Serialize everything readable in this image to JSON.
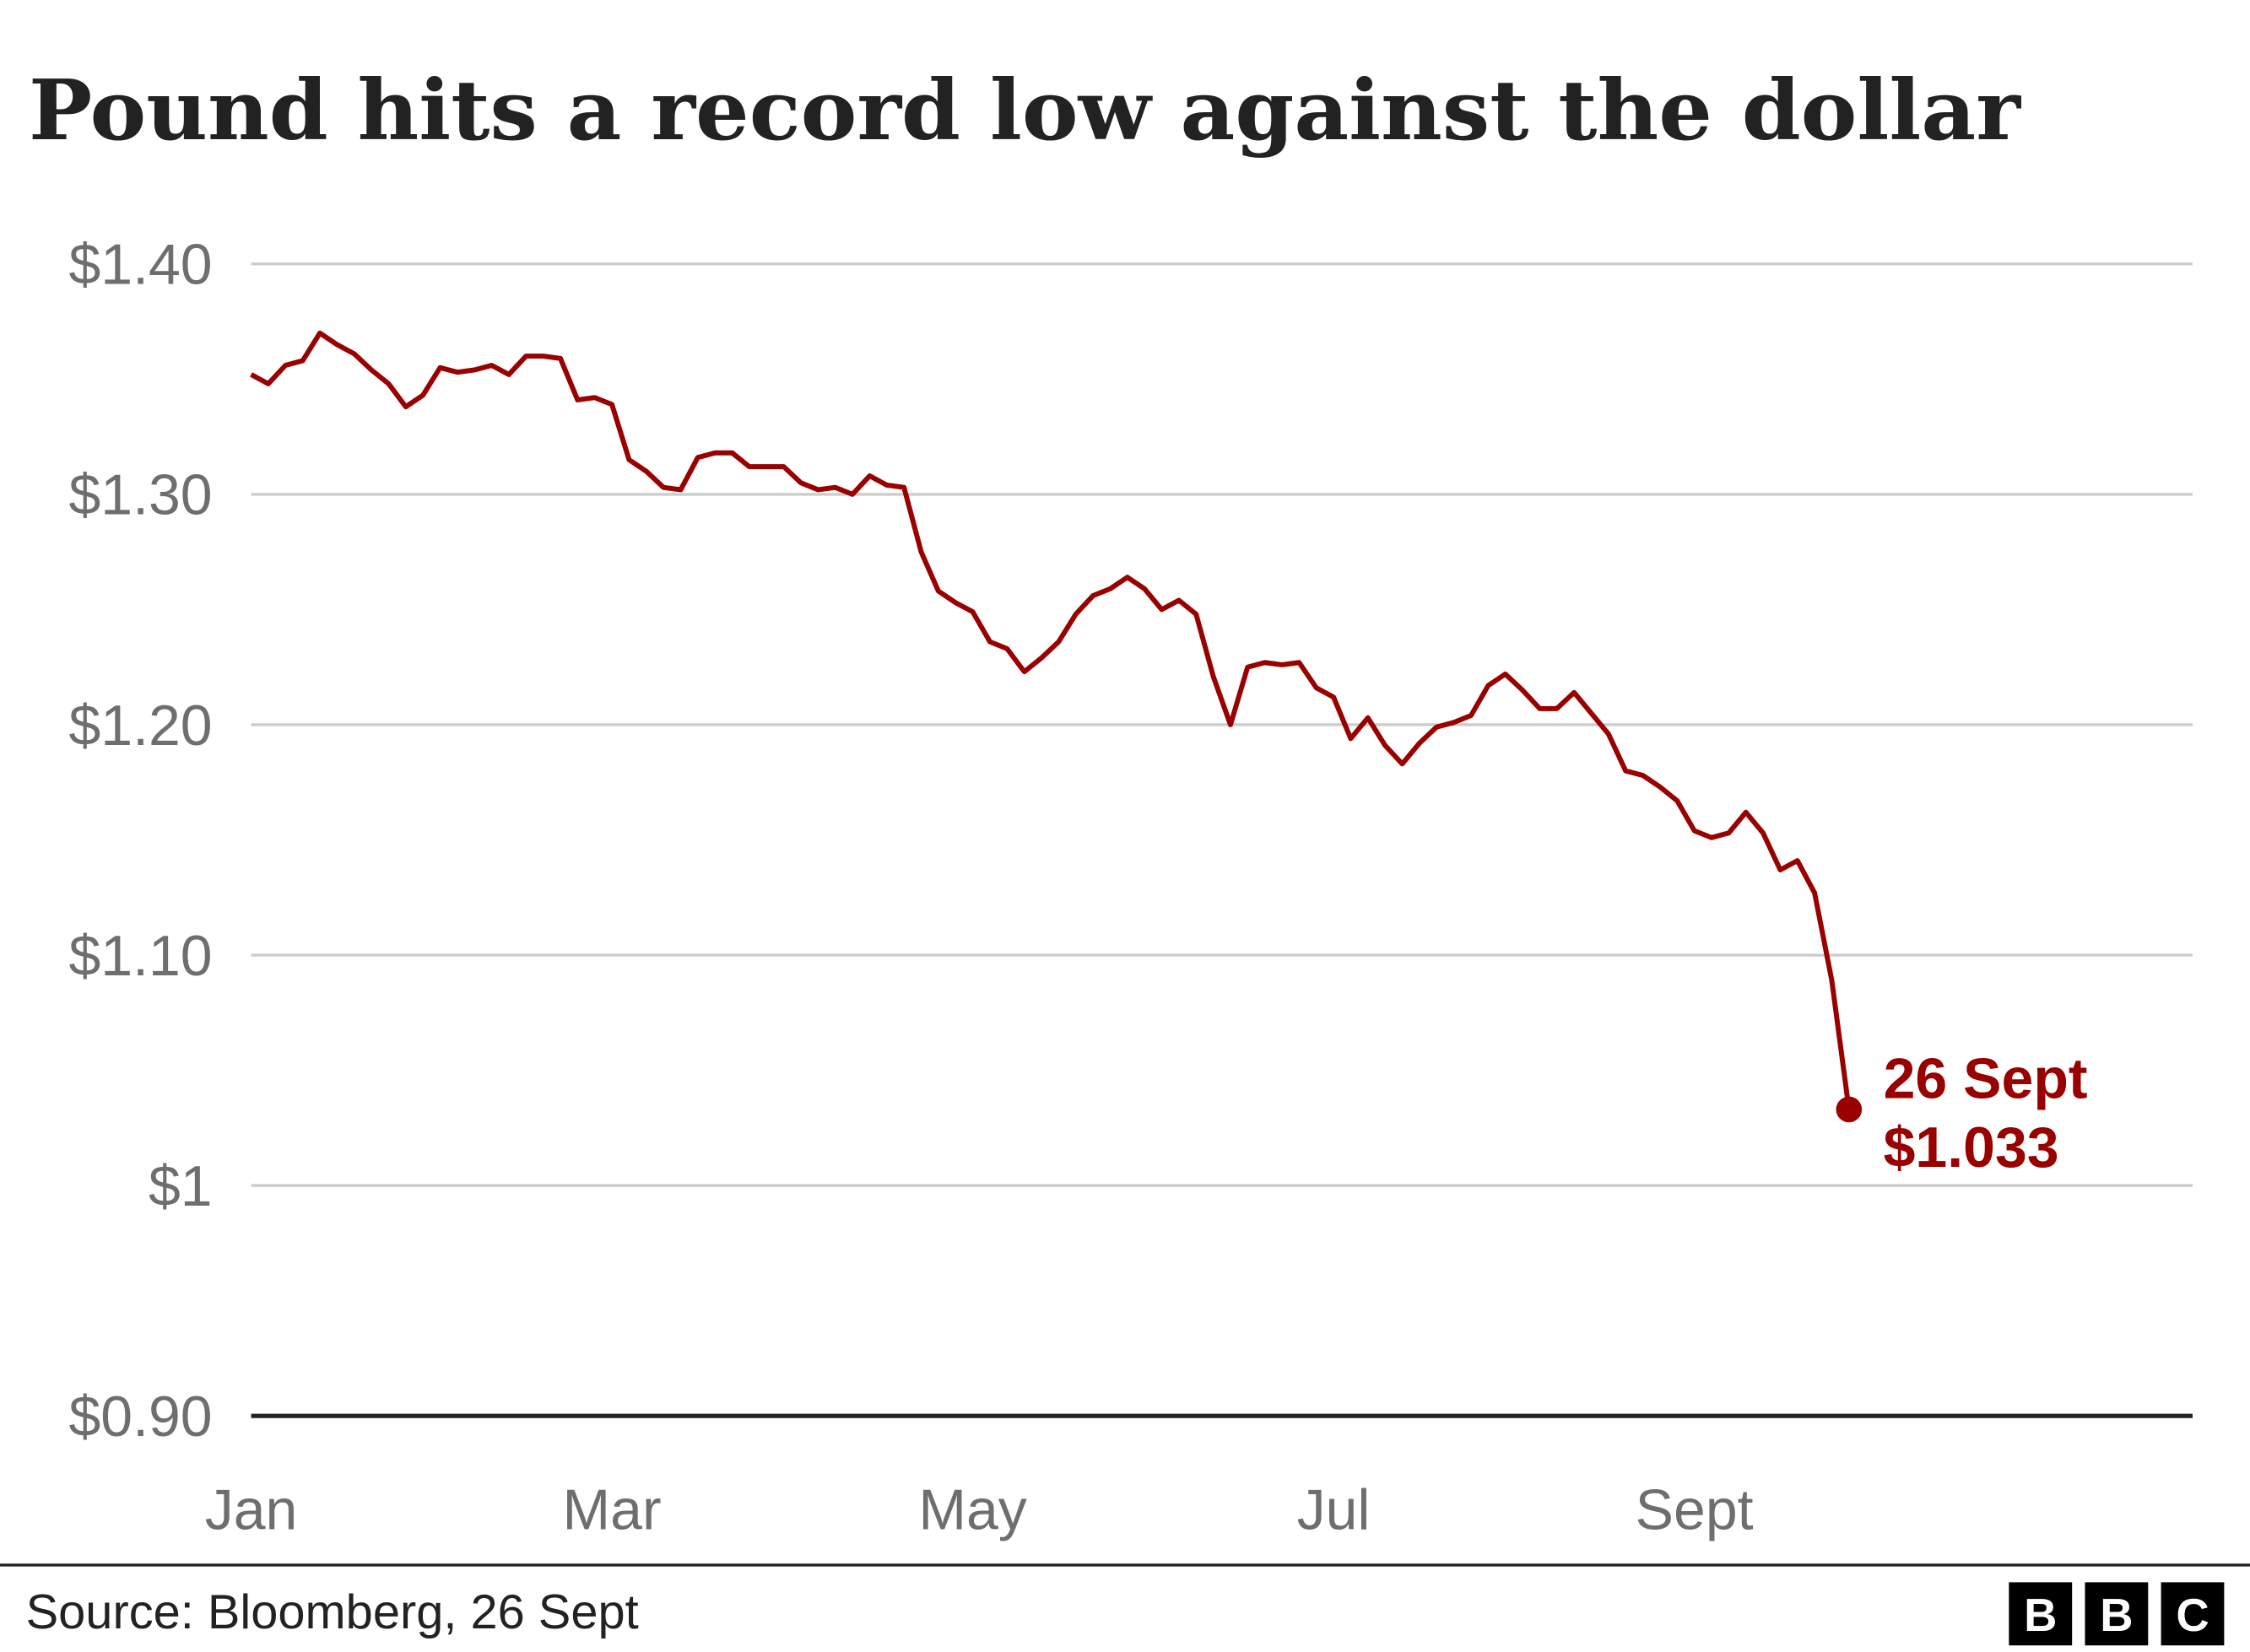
{
  "chart_data": {
    "type": "line",
    "title": "Pound hits a record low against the dollar",
    "categories": [
      "Jan",
      null,
      null,
      null,
      null,
      null,
      null,
      null,
      null,
      null,
      null,
      null,
      null,
      null,
      null,
      null,
      null,
      null,
      null,
      null,
      null,
      "Mar",
      null,
      null,
      null,
      null,
      null,
      null,
      null,
      null,
      null,
      null,
      null,
      null,
      null,
      null,
      null,
      null,
      null,
      null,
      null,
      null,
      "May",
      null,
      null,
      null,
      null,
      null,
      null,
      null,
      null,
      null,
      null,
      null,
      null,
      null,
      null,
      null,
      null,
      null,
      null,
      null,
      null,
      "Jul",
      null,
      null,
      null,
      null,
      null,
      null,
      null,
      null,
      null,
      null,
      null,
      null,
      null,
      null,
      null,
      null,
      null,
      null,
      null,
      null,
      "Sept",
      null,
      null,
      null,
      null,
      null,
      null,
      null,
      null,
      null
    ],
    "values": [
      1.352,
      1.348,
      1.356,
      1.358,
      1.37,
      1.365,
      1.361,
      1.354,
      1.348,
      1.338,
      1.343,
      1.355,
      1.353,
      1.354,
      1.356,
      1.352,
      1.36,
      1.36,
      1.359,
      1.341,
      1.342,
      1.339,
      1.315,
      1.31,
      1.303,
      1.302,
      1.316,
      1.318,
      1.318,
      1.312,
      1.312,
      1.312,
      1.305,
      1.302,
      1.303,
      1.3,
      1.308,
      1.304,
      1.303,
      1.275,
      1.258,
      1.253,
      1.249,
      1.236,
      1.233,
      1.223,
      1.229,
      1.236,
      1.248,
      1.256,
      1.259,
      1.264,
      1.259,
      1.25,
      1.254,
      1.248,
      1.221,
      1.2,
      1.225,
      1.227,
      1.226,
      1.227,
      1.216,
      1.212,
      1.194,
      1.203,
      1.191,
      1.183,
      1.192,
      1.199,
      1.201,
      1.204,
      1.217,
      1.222,
      1.215,
      1.207,
      1.207,
      1.214,
      1.205,
      1.196,
      1.18,
      1.178,
      1.173,
      1.167,
      1.154,
      1.151,
      1.153,
      1.162,
      1.153,
      1.137,
      1.141,
      1.127,
      1.089,
      1.033
    ],
    "value_labels": [
      null,
      null,
      null,
      null,
      null,
      null,
      null,
      null,
      null,
      null,
      null,
      null,
      null,
      null,
      null,
      null,
      null,
      null,
      null,
      null,
      null,
      null,
      null,
      null,
      null,
      null,
      null,
      null,
      null,
      null,
      null,
      null,
      null,
      null,
      null,
      null,
      null,
      null,
      null,
      null,
      null,
      null,
      null,
      null,
      null,
      null,
      null,
      null,
      null,
      null,
      null,
      null,
      null,
      null,
      null,
      null,
      null,
      null,
      null,
      null,
      null,
      null,
      null,
      null,
      null,
      null,
      null,
      null,
      null,
      null,
      null,
      null,
      null,
      null,
      null,
      null,
      null,
      null,
      null,
      null,
      null,
      null,
      null,
      null,
      null,
      null,
      null,
      null,
      null,
      null,
      null,
      null,
      null,
      "$1.033"
    ],
    "annotation": "26 Sept",
    "color": "#990000",
    "xlim": [
      0,
      113
    ],
    "ylim": [
      0.9,
      1.4
    ],
    "yticks": [
      {
        "value": 0.9,
        "label": "$0.90"
      },
      {
        "value": 1,
        "label": "$1"
      },
      {
        "value": 1.1,
        "label": "$1.10"
      },
      {
        "value": 1.2,
        "label": "$1.20"
      },
      {
        "value": 1.3,
        "label": "$1.30"
      },
      {
        "value": 1.4,
        "label": "$1.40"
      }
    ],
    "grid": true,
    "source": "Source: Bloomberg, 26 Sept",
    "logo": [
      "B",
      "B",
      "C"
    ]
  }
}
